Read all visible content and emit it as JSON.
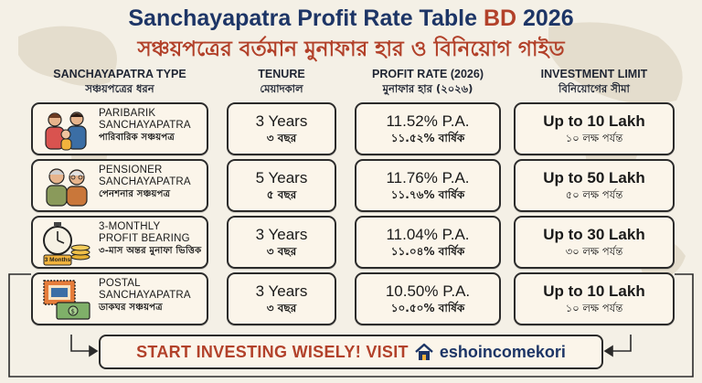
{
  "header": {
    "title_main": "Sanchayapatra Profit Rate Table",
    "title_highlight": "BD",
    "title_year": "2026",
    "subtitle_bn": "সঞ্চয়পত্রের বর্তমান মুনাফার হার ও বিনিয়োগ গাইড"
  },
  "columns": [
    {
      "en": "SANCHAYAPATRA TYPE",
      "bn": "সঞ্চয়পত্রের ধরন"
    },
    {
      "en": "TENURE",
      "bn": "মেয়াদকাল"
    },
    {
      "en": "PROFIT RATE (2026)",
      "bn": "মুনাফার হার (২০২৬)"
    },
    {
      "en": "INVESTMENT LIMIT",
      "bn": "বিনিয়োগের সীমা"
    }
  ],
  "rows": [
    {
      "icon": "family-icon",
      "name_line1": "PARIBARIK",
      "name_line2": "SANCHAYAPATRA",
      "name_bn": "পারিবারিক সঞ্চয়পত্র",
      "tenure": "3 Years",
      "tenure_bn": "৩ বছর",
      "rate": "11.52% P.A.",
      "rate_bn": "১১.৫২% বার্ষিক",
      "limit": "Up to 10 Lakh",
      "limit_bn": "১০ লক্ষ পর্যন্ত"
    },
    {
      "icon": "elderly-couple-icon",
      "name_line1": "PENSIONER",
      "name_line2": "SANCHAYAPATRA",
      "name_bn": "পেনশনার সঞ্চয়পত্র",
      "tenure": "5 Years",
      "tenure_bn": "৫ বছর",
      "rate": "11.76% P.A.",
      "rate_bn": "১১.৭৬% বার্ষিক",
      "limit": "Up to 50 Lakh",
      "limit_bn": "৫০ লক্ষ পর্যন্ত"
    },
    {
      "icon": "stopwatch-coins-icon",
      "icon_label": "3 Months",
      "name_line1": "3-MONTHLY",
      "name_line2": "PROFIT BEARING",
      "name_bn": "৩-মাস অন্তর মুনাফা ভিত্তিক",
      "tenure": "3 Years",
      "tenure_bn": "৩ বছর",
      "rate": "11.04% P.A.",
      "rate_bn": "১১.০৪% বার্ষিক",
      "limit": "Up to 30 Lakh",
      "limit_bn": "৩০ লক্ষ পর্যন্ত"
    },
    {
      "icon": "postal-stamp-money-icon",
      "name_line1": "POSTAL",
      "name_line2": "SANCHAYAPATRA",
      "name_bn": "ডাকঘর সঞ্চয়পত্র",
      "tenure": "3 Years",
      "tenure_bn": "৩ বছর",
      "rate": "10.50% P.A.",
      "rate_bn": "১০.৫০% বার্ষিক",
      "limit": "Up to 10 Lakh",
      "limit_bn": "১০ লক্ষ পর্যন্ত"
    }
  ],
  "cta": {
    "text": "START INVESTING WISELY! VISIT",
    "brand": "eshoincomekori",
    "brand_icon": "house-icon"
  },
  "colors": {
    "navy": "#1d3566",
    "accent_red": "#b2412a",
    "background": "#f4f0e6",
    "card_fill": "#fbf5ea",
    "border": "#2b2b2b"
  }
}
